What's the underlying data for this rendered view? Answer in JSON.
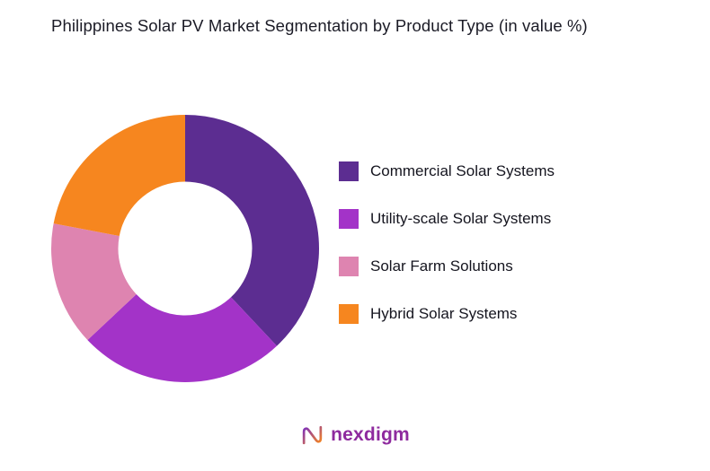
{
  "title": "Philippines Solar PV Market Segmentation by Product Type (in value %)",
  "chart_data": {
    "type": "pie",
    "subtype": "donut",
    "title": "Philippines Solar PV Market Segmentation by Product Type (in value %)",
    "categories": [
      "Commercial Solar Systems",
      "Utility-scale Solar Systems",
      "Solar Farm Solutions",
      "Hybrid Solar Systems"
    ],
    "values": [
      38,
      25,
      15,
      22
    ],
    "colors": [
      "#5C2D91",
      "#A333C8",
      "#DE84B0",
      "#F6861F"
    ],
    "legend_position": "right",
    "start_angle_deg": 0,
    "direction": "clockwise",
    "donut_hole_ratio": 0.5
  },
  "footer": {
    "brand": "nexdigm",
    "brand_color": "#8E2A9E",
    "logo_gradient": [
      "#7B2FBE",
      "#F6861F"
    ]
  }
}
